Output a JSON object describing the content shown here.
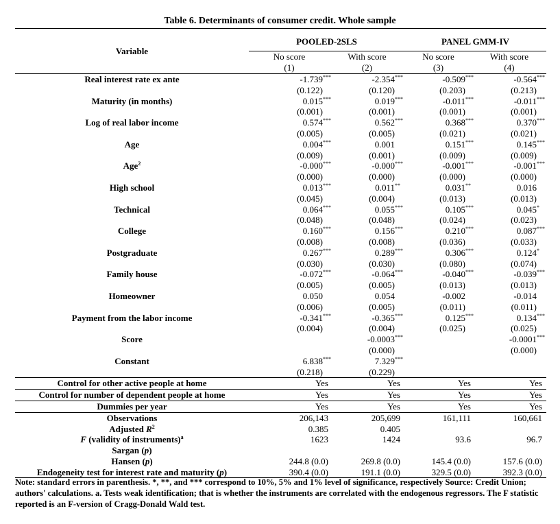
{
  "title": "Table 6. Determinants of consumer credit. Whole sample",
  "header": {
    "variable": "Variable",
    "groups": [
      "POOLED-2SLS",
      "PANEL GMM-IV"
    ],
    "columns": [
      {
        "label": "No score",
        "num": "(1)"
      },
      {
        "label": "With score",
        "num": "(2)"
      },
      {
        "label": "No score",
        "num": "(3)"
      },
      {
        "label": "With score",
        "num": "(4)"
      }
    ]
  },
  "rows": [
    {
      "label": "Real interest rate ex ante",
      "coef": [
        {
          "v": "-1.739",
          "s": "***"
        },
        {
          "v": "-2.354",
          "s": "***"
        },
        {
          "v": "-0.509",
          "s": "***"
        },
        {
          "v": "-0.564",
          "s": "***"
        }
      ],
      "se": [
        "(0.122)",
        "(0.120)",
        "(0.203)",
        "(0.213)"
      ]
    },
    {
      "label": "Maturity (in months)",
      "coef": [
        {
          "v": "0.015",
          "s": "***"
        },
        {
          "v": "0.019",
          "s": "***"
        },
        {
          "v": "-0.011",
          "s": "***"
        },
        {
          "v": "-0.011",
          "s": "***"
        }
      ],
      "se": [
        "(0.001)",
        "(0.001)",
        "(0.001)",
        "(0.001)"
      ]
    },
    {
      "label": "Log of real labor income",
      "coef": [
        {
          "v": "0.574",
          "s": "***"
        },
        {
          "v": "0.562",
          "s": "***"
        },
        {
          "v": "0.368",
          "s": "***"
        },
        {
          "v": "0.370",
          "s": "***"
        }
      ],
      "se": [
        "(0.005)",
        "(0.005)",
        "(0.021)",
        "(0.021)"
      ]
    },
    {
      "label": "Age",
      "coef": [
        {
          "v": "0.004",
          "s": "***"
        },
        {
          "v": "0.001",
          "s": ""
        },
        {
          "v": "0.151",
          "s": "***"
        },
        {
          "v": "0.145",
          "s": "***"
        }
      ],
      "se": [
        "(0.009)",
        "(0.001)",
        "(0.009)",
        "(0.009)"
      ]
    },
    {
      "label": "Age",
      "sup": "2",
      "coef": [
        {
          "v": "-0.000",
          "s": "***"
        },
        {
          "v": "-0.000",
          "s": "***"
        },
        {
          "v": "-0.001",
          "s": "***"
        },
        {
          "v": "-0.001",
          "s": "***"
        }
      ],
      "se": [
        "(0.000)",
        "(0.000)",
        "(0.000)",
        "(0.000)"
      ]
    },
    {
      "label": "High school",
      "coef": [
        {
          "v": "0.013",
          "s": "***"
        },
        {
          "v": "0.011",
          "s": "**"
        },
        {
          "v": "0.031",
          "s": "**"
        },
        {
          "v": "0.016",
          "s": ""
        }
      ],
      "se": [
        "(0.045)",
        "(0.004)",
        "(0.013)",
        "(0.013)"
      ]
    },
    {
      "label": "Technical",
      "coef": [
        {
          "v": "0.064",
          "s": "***"
        },
        {
          "v": "0.055",
          "s": "***"
        },
        {
          "v": "0.105",
          "s": "***"
        },
        {
          "v": "0.045",
          "s": "*"
        }
      ],
      "se": [
        "(0.048)",
        "(0.048)",
        "(0.024)",
        "(0.023)"
      ]
    },
    {
      "label": "College",
      "coef": [
        {
          "v": "0.160",
          "s": "***"
        },
        {
          "v": "0.156",
          "s": "***"
        },
        {
          "v": "0.210",
          "s": "***"
        },
        {
          "v": "0.087",
          "s": "***"
        }
      ],
      "se": [
        "(0.008)",
        "(0.008)",
        "(0.036)",
        "(0.033)"
      ]
    },
    {
      "label": "Postgraduate",
      "coef": [
        {
          "v": "0.267",
          "s": "***"
        },
        {
          "v": "0.289",
          "s": "***"
        },
        {
          "v": "0.306",
          "s": "***"
        },
        {
          "v": "0.124",
          "s": "*"
        }
      ],
      "se": [
        "(0.030)",
        "(0.030)",
        "(0.080)",
        "(0.074)"
      ]
    },
    {
      "label": "Family house",
      "coef": [
        {
          "v": "-0.072",
          "s": "***"
        },
        {
          "v": "-0.064",
          "s": "***"
        },
        {
          "v": "-0.040",
          "s": "***"
        },
        {
          "v": "-0.039",
          "s": "***"
        }
      ],
      "se": [
        "(0.005)",
        "(0.005)",
        "(0.013)",
        "(0.013)"
      ]
    },
    {
      "label": "Homeowner",
      "coef": [
        {
          "v": "0.050",
          "s": ""
        },
        {
          "v": "0.054",
          "s": ""
        },
        {
          "v": "-0.002",
          "s": ""
        },
        {
          "v": "-0.014",
          "s": ""
        }
      ],
      "se": [
        "(0.006)",
        "(0.005)",
        "(0.011)",
        "(0.011)"
      ]
    },
    {
      "label": "Payment from the labor income",
      "coef": [
        {
          "v": "-0.341",
          "s": "***"
        },
        {
          "v": "-0.365",
          "s": "***"
        },
        {
          "v": "0.125",
          "s": "***"
        },
        {
          "v": "0.134",
          "s": "***"
        }
      ],
      "se": [
        "(0.004)",
        "(0.004)",
        "(0.025)",
        "(0.025)"
      ]
    },
    {
      "label": "Score",
      "coef": [
        {
          "v": "",
          "s": ""
        },
        {
          "v": "-0.0003",
          "s": "***"
        },
        {
          "v": "",
          "s": ""
        },
        {
          "v": "-0.0001",
          "s": "***"
        }
      ],
      "se": [
        "",
        "(0.000)",
        "",
        "(0.000)"
      ]
    },
    {
      "label": "Constant",
      "coef": [
        {
          "v": "6.838",
          "s": "***"
        },
        {
          "v": "7.329",
          "s": "***"
        },
        {
          "v": "",
          "s": ""
        },
        {
          "v": "",
          "s": ""
        }
      ],
      "se": [
        "(0.218)",
        "(0.229)",
        "",
        ""
      ]
    }
  ],
  "controls": [
    {
      "label": "Control for other active people at home",
      "values": [
        "Yes",
        "Yes",
        "Yes",
        "Yes"
      ]
    },
    {
      "label": "Control for number of dependent people at home",
      "values": [
        "Yes",
        "Yes",
        "Yes",
        "Yes"
      ]
    },
    {
      "label": "Dummies per year",
      "values": [
        "Yes",
        "Yes",
        "Yes",
        "Yes"
      ]
    }
  ],
  "stats": [
    {
      "label": [
        {
          "t": "Observations"
        }
      ],
      "values": [
        "206,143",
        "205,699",
        "161,111",
        "160,661"
      ]
    },
    {
      "label": [
        {
          "t": "Adjusted "
        },
        {
          "t": "R",
          "i": true
        },
        {
          "t": "2",
          "sup": true
        }
      ],
      "values": [
        "0.385",
        "0.405",
        "",
        ""
      ]
    },
    {
      "label": [
        {
          "t": "F",
          "i": true
        },
        {
          "t": " (validity of instruments)"
        },
        {
          "t": "a",
          "sup": true
        }
      ],
      "values": [
        "1623",
        "1424",
        "93.6",
        "96.7"
      ]
    },
    {
      "label": [
        {
          "t": "Sargan ("
        },
        {
          "t": "p",
          "i": true
        },
        {
          "t": ")"
        }
      ],
      "values": [
        "",
        "",
        "",
        ""
      ]
    },
    {
      "label": [
        {
          "t": "Hansen ("
        },
        {
          "t": "p",
          "i": true
        },
        {
          "t": ")"
        }
      ],
      "values": [
        "244.8 (0.0)",
        "269.8 (0.0)",
        "145.4 (0.0)",
        "157.6 (0.0)"
      ]
    },
    {
      "label": [
        {
          "t": "Endogeneity test for interest rate and maturity ("
        },
        {
          "t": "p",
          "i": true
        },
        {
          "t": ")"
        }
      ],
      "values": [
        "390.4 (0.0)",
        "191.1 (0.0)",
        "329.5 (0.0)",
        "392.3 (0.0)"
      ]
    }
  ],
  "note": "Note: standard errors in parenthesis. *, **, and *** correspond to 10%, 5% and 1% level of significance, respectively Source: Credit Union; authors' calculations. a. Tests weak identification; that is whether the instruments are correlated with the endogenous regressors. The F statistic reported is an F-version of Cragg-Donald Wald test."
}
